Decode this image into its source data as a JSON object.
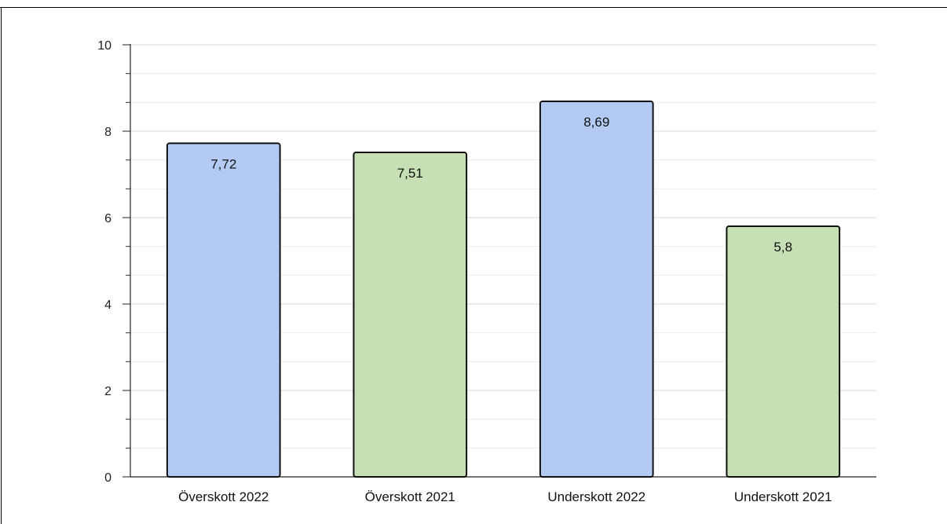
{
  "chart_data": {
    "type": "bar",
    "title": "",
    "xlabel": "",
    "ylabel": "",
    "categories": [
      "Överskott 2022",
      "Överskott 2021",
      "Underskott 2022",
      "Underskott 2021"
    ],
    "values": [
      7.72,
      7.51,
      8.69,
      5.8
    ],
    "value_labels": [
      "7,72",
      "7,51",
      "8,69",
      "5,8"
    ],
    "bar_colors": [
      "#b3cbf3",
      "#c6dfb5",
      "#b3cbf3",
      "#c6dfb5"
    ],
    "bar_stroke": "#111111",
    "ylim": [
      0,
      10
    ],
    "y_ticks": [
      0,
      2,
      4,
      6,
      8,
      10
    ],
    "y_minor_step": 0.667,
    "grid": true,
    "grid_color": "#d9d9d9",
    "minor_grid_color": "#ececec"
  }
}
